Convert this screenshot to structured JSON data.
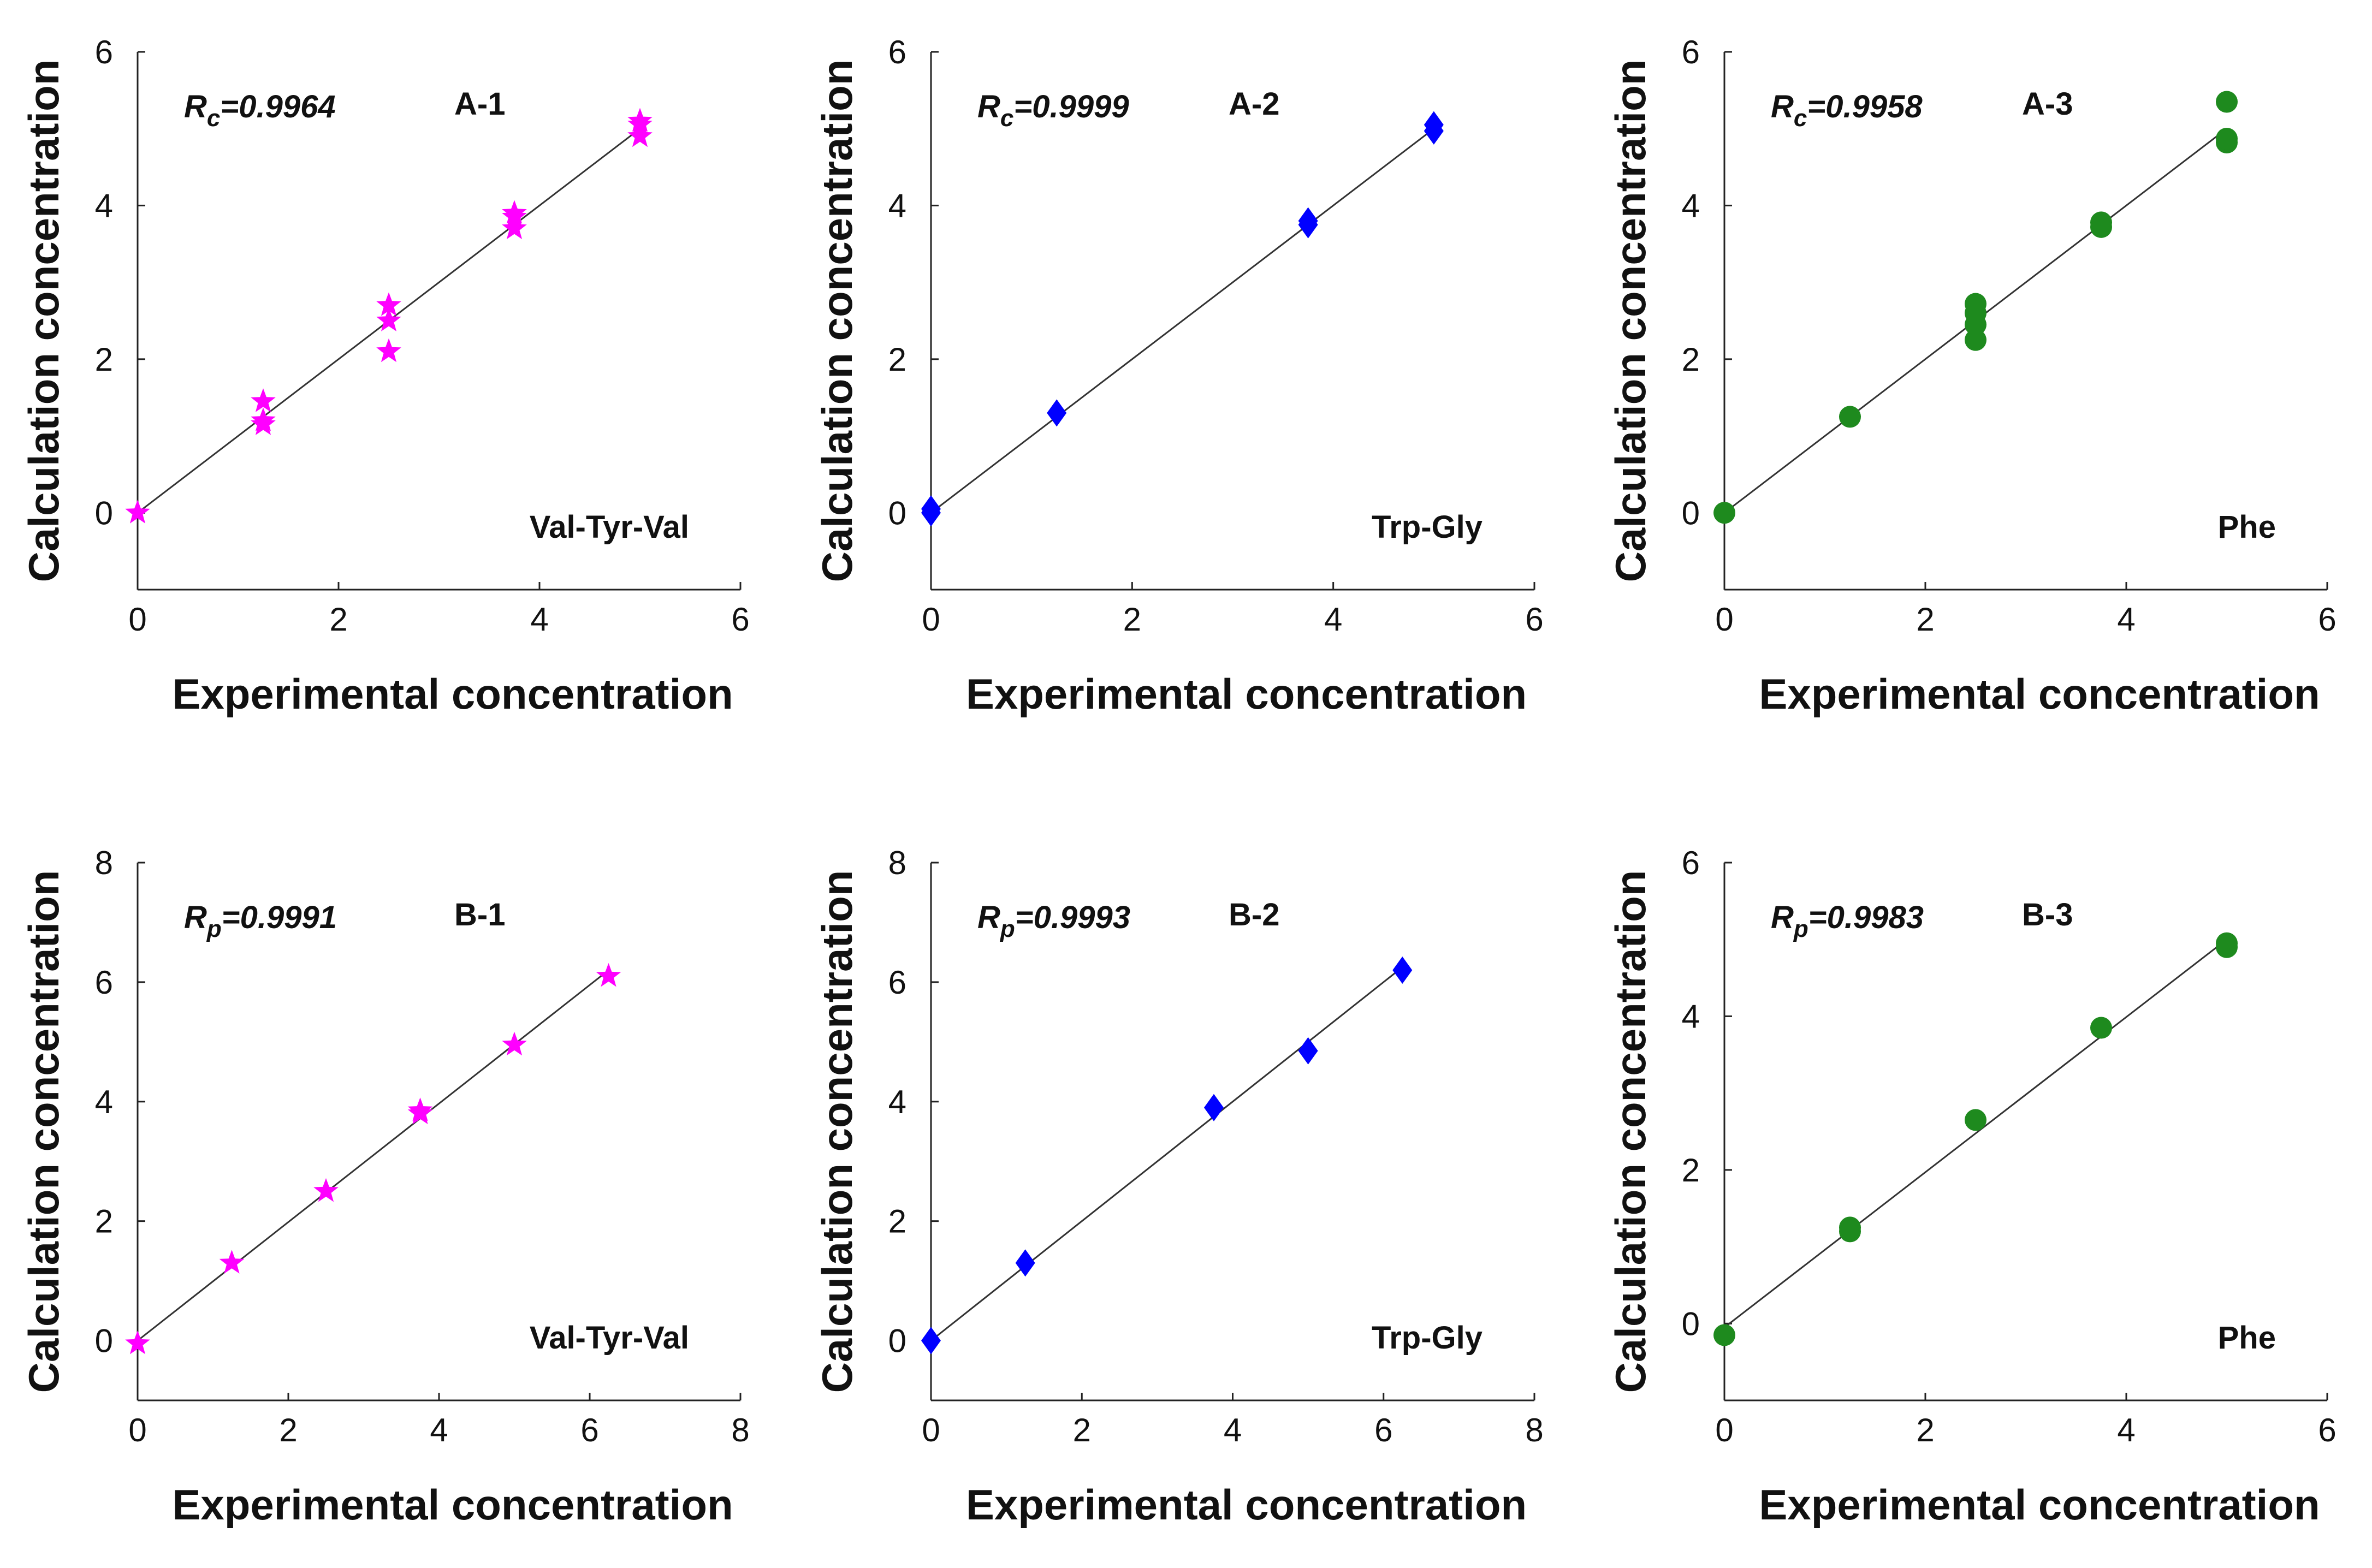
{
  "chart_data": [
    {
      "type": "scatter",
      "panel_label": "A-1",
      "r_symbol": "R",
      "r_sub": "c",
      "r_value": "=0.9964",
      "compound": "Val-Tyr-Val",
      "xlabel": "Experimental concentration",
      "ylabel": "Calculation concentration",
      "xlim": [
        0,
        6
      ],
      "ylim": [
        -1,
        6
      ],
      "xticks": [
        0,
        2,
        4,
        6
      ],
      "yticks": [
        0,
        2,
        4,
        6
      ],
      "marker": "star",
      "color": "#ff00ff",
      "fit_line": [
        [
          0,
          0
        ],
        [
          5,
          5
        ]
      ],
      "series": [
        {
          "x": [
            0,
            1.25,
            1.25,
            1.25,
            2.5,
            2.5,
            2.5,
            3.75,
            3.75,
            3.75,
            5,
            5,
            5
          ],
          "y": [
            0,
            1.15,
            1.2,
            1.45,
            2.1,
            2.5,
            2.7,
            3.7,
            3.85,
            3.9,
            4.9,
            5.05,
            5.1
          ]
        }
      ]
    },
    {
      "type": "scatter",
      "panel_label": "A-2",
      "r_symbol": "R",
      "r_sub": "c",
      "r_value": "=0.9999",
      "compound": "Trp-Gly",
      "xlabel": "Experimental concentration",
      "ylabel": "Calculation concentration",
      "xlim": [
        0,
        6
      ],
      "ylim": [
        -1,
        6
      ],
      "xticks": [
        0,
        2,
        4,
        6
      ],
      "yticks": [
        0,
        2,
        4,
        6
      ],
      "marker": "diamond",
      "color": "#0000ff",
      "fit_line": [
        [
          0,
          0
        ],
        [
          5,
          5
        ]
      ],
      "series": [
        {
          "x": [
            0,
            0,
            1.25,
            3.75,
            3.75,
            5,
            5
          ],
          "y": [
            0,
            0.05,
            1.3,
            3.75,
            3.8,
            4.97,
            5.05
          ]
        }
      ]
    },
    {
      "type": "scatter",
      "panel_label": "A-3",
      "r_symbol": "R",
      "r_sub": "c",
      "r_value": "=0.9958",
      "compound": "Phe",
      "xlabel": "Experimental concentration",
      "ylabel": "Calculation concentration",
      "xlim": [
        0,
        6
      ],
      "ylim": [
        -1,
        6
      ],
      "xticks": [
        0,
        2,
        4,
        6
      ],
      "yticks": [
        0,
        2,
        4,
        6
      ],
      "marker": "circle",
      "color": "#1e8a1e",
      "fit_line": [
        [
          0,
          0
        ],
        [
          5,
          5
        ]
      ],
      "series": [
        {
          "x": [
            0,
            1.25,
            2.5,
            2.5,
            2.5,
            2.5,
            3.75,
            3.75,
            5,
            5,
            5
          ],
          "y": [
            0,
            1.25,
            2.25,
            2.45,
            2.6,
            2.72,
            3.72,
            3.78,
            4.82,
            4.87,
            5.35
          ]
        }
      ]
    },
    {
      "type": "scatter",
      "panel_label": "B-1",
      "r_symbol": "R",
      "r_sub": "p",
      "r_value": "=0.9991",
      "compound": "Val-Tyr-Val",
      "xlabel": "Experimental concentration",
      "ylabel": "Calculation concentration",
      "xlim": [
        0,
        8
      ],
      "ylim": [
        -1,
        8
      ],
      "xticks": [
        0,
        2,
        4,
        6,
        8
      ],
      "yticks": [
        0,
        2,
        4,
        6,
        8
      ],
      "marker": "star",
      "color": "#ff00ff",
      "fit_line": [
        [
          0,
          0
        ],
        [
          6.25,
          6.2
        ]
      ],
      "series": [
        {
          "x": [
            0,
            1.25,
            2.5,
            3.75,
            3.75,
            5,
            6.25
          ],
          "y": [
            -0.05,
            1.3,
            2.5,
            3.8,
            3.85,
            4.95,
            6.1
          ]
        }
      ]
    },
    {
      "type": "scatter",
      "panel_label": "B-2",
      "r_symbol": "R",
      "r_sub": "p",
      "r_value": "=0.9993",
      "compound": "Trp-Gly",
      "xlabel": "Experimental concentration",
      "ylabel": "Calculation concentration",
      "xlim": [
        0,
        8
      ],
      "ylim": [
        -1,
        8
      ],
      "xticks": [
        0,
        2,
        4,
        6,
        8
      ],
      "yticks": [
        0,
        2,
        4,
        6,
        8
      ],
      "marker": "diamond",
      "color": "#0000ff",
      "fit_line": [
        [
          0,
          0
        ],
        [
          6.25,
          6.25
        ]
      ],
      "series": [
        {
          "x": [
            0,
            1.25,
            3.75,
            5,
            6.25
          ],
          "y": [
            0,
            1.3,
            3.9,
            4.85,
            6.2
          ]
        }
      ]
    },
    {
      "type": "scatter",
      "panel_label": "B-3",
      "r_symbol": "R",
      "r_sub": "p",
      "r_value": "=0.9983",
      "compound": "Phe",
      "xlabel": "Experimental concentration",
      "ylabel": "Calculation concentration",
      "xlim": [
        0,
        6
      ],
      "ylim": [
        -1,
        6
      ],
      "xticks": [
        0,
        2,
        4,
        6
      ],
      "yticks": [
        0,
        2,
        4,
        6
      ],
      "marker": "circle",
      "color": "#1e8a1e",
      "fit_line": [
        [
          0,
          -0.05
        ],
        [
          5,
          5
        ]
      ],
      "series": [
        {
          "x": [
            0,
            1.25,
            1.25,
            2.5,
            3.75,
            5,
            5
          ],
          "y": [
            -0.15,
            1.2,
            1.25,
            2.65,
            3.85,
            4.9,
            4.95
          ]
        }
      ]
    }
  ]
}
